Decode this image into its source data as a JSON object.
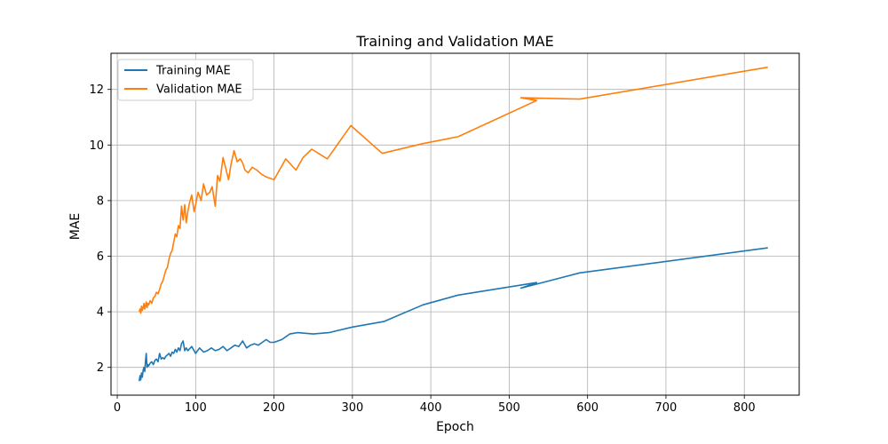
{
  "chart_data": {
    "type": "line",
    "title": "Training and Validation MAE",
    "xlabel": "Epoch",
    "ylabel": "MAE",
    "xlim": [
      -8,
      870
    ],
    "ylim": [
      1.0,
      13.3
    ],
    "xticks": [
      0,
      100,
      200,
      300,
      400,
      500,
      600,
      700,
      800
    ],
    "yticks": [
      2,
      4,
      6,
      8,
      10,
      12
    ],
    "grid": true,
    "legend_position": "top-left",
    "series": [
      {
        "name": "Training MAE",
        "color": "#1f77b4",
        "x": [
          28,
          29,
          30,
          31,
          32,
          33,
          34,
          35,
          36,
          37,
          38,
          39,
          40,
          42,
          44,
          46,
          48,
          50,
          52,
          54,
          56,
          58,
          60,
          62,
          64,
          66,
          68,
          70,
          72,
          74,
          76,
          78,
          80,
          82,
          84,
          86,
          88,
          90,
          95,
          100,
          105,
          110,
          115,
          120,
          125,
          130,
          135,
          140,
          145,
          150,
          155,
          160,
          165,
          170,
          175,
          180,
          185,
          190,
          195,
          200,
          210,
          220,
          230,
          250,
          270,
          300,
          340,
          390,
          435,
          535,
          515,
          590,
          830
        ],
        "y": [
          1.5,
          1.7,
          1.55,
          1.8,
          1.65,
          1.9,
          2.0,
          1.85,
          2.2,
          2.5,
          2.0,
          2.1,
          2.05,
          2.15,
          2.2,
          2.1,
          2.25,
          2.3,
          2.2,
          2.5,
          2.3,
          2.35,
          2.3,
          2.4,
          2.45,
          2.5,
          2.4,
          2.55,
          2.5,
          2.65,
          2.55,
          2.7,
          2.6,
          2.85,
          2.95,
          2.6,
          2.7,
          2.6,
          2.75,
          2.5,
          2.7,
          2.55,
          2.6,
          2.7,
          2.6,
          2.65,
          2.75,
          2.6,
          2.7,
          2.8,
          2.75,
          2.95,
          2.7,
          2.8,
          2.85,
          2.8,
          2.9,
          3.0,
          2.9,
          2.9,
          3.0,
          3.2,
          3.25,
          3.2,
          3.25,
          3.45,
          3.65,
          4.25,
          4.6,
          5.05,
          4.85,
          5.4,
          6.3
        ]
      },
      {
        "name": "Validation MAE",
        "color": "#ff7f0e",
        "x": [
          28,
          29,
          30,
          31,
          32,
          33,
          34,
          35,
          36,
          37,
          38,
          39,
          40,
          42,
          44,
          46,
          48,
          50,
          52,
          54,
          56,
          58,
          60,
          62,
          64,
          66,
          68,
          70,
          72,
          74,
          76,
          78,
          80,
          82,
          84,
          86,
          88,
          90,
          92,
          95,
          98,
          100,
          103,
          107,
          110,
          114,
          118,
          121,
          125,
          128,
          131,
          135,
          138,
          142,
          145,
          149,
          153,
          157,
          160,
          163,
          167,
          172,
          178,
          184,
          190,
          200,
          215,
          228,
          237,
          248,
          268,
          298,
          338,
          390,
          435,
          535,
          515,
          590,
          830
        ],
        "y": [
          4.0,
          4.1,
          3.95,
          4.2,
          4.05,
          4.15,
          4.3,
          4.1,
          4.2,
          4.35,
          4.15,
          4.3,
          4.25,
          4.4,
          4.3,
          4.5,
          4.55,
          4.7,
          4.65,
          4.8,
          5.0,
          5.1,
          5.3,
          5.5,
          5.6,
          5.9,
          6.1,
          6.2,
          6.5,
          6.8,
          6.7,
          7.1,
          7.0,
          7.8,
          7.3,
          7.85,
          7.2,
          7.6,
          7.9,
          8.2,
          7.6,
          7.85,
          8.3,
          8.0,
          8.6,
          8.2,
          8.3,
          8.5,
          7.8,
          8.9,
          8.7,
          9.55,
          9.2,
          8.75,
          9.3,
          9.8,
          9.4,
          9.5,
          9.35,
          9.1,
          9.0,
          9.2,
          9.1,
          8.95,
          8.85,
          8.75,
          9.5,
          9.1,
          9.55,
          9.85,
          9.5,
          10.7,
          9.7,
          10.05,
          10.3,
          11.6,
          11.7,
          11.65,
          12.8
        ]
      }
    ]
  }
}
